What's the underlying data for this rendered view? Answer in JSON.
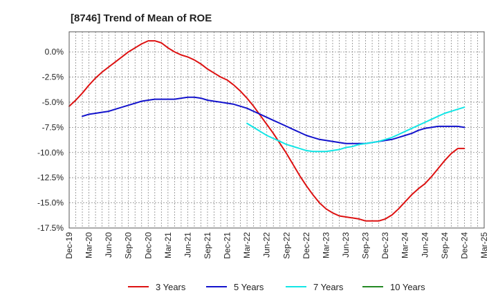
{
  "chart_data": {
    "type": "line",
    "title": "[8746]  Trend of Mean of ROE",
    "xlabel": "",
    "ylabel": "",
    "grid": true,
    "legend_position": "bottom",
    "x_ticks": [
      "Dec-19",
      "Mar-20",
      "Jun-20",
      "Sep-20",
      "Dec-20",
      "Mar-21",
      "Jun-21",
      "Sep-21",
      "Dec-21",
      "Mar-22",
      "Jun-22",
      "Sep-22",
      "Dec-22",
      "Mar-23",
      "Jun-23",
      "Sep-23",
      "Dec-23",
      "Mar-24",
      "Jun-24",
      "Sep-24",
      "Dec-24",
      "Mar-25"
    ],
    "y_ticks": [
      0.0,
      -2.5,
      -5.0,
      -7.5,
      -10.0,
      -12.5,
      -15.0,
      -17.5
    ],
    "y_tick_labels": [
      "0.0%",
      "-2.5%",
      "-5.0%",
      "-7.5%",
      "-10.0%",
      "-12.5%",
      "-15.0%",
      "-17.5%"
    ],
    "ylim": [
      -17.5,
      2.0
    ],
    "series": [
      {
        "name": "3 Years",
        "color": "#dd1111",
        "x": [
          "Dec-19",
          "Jan-20",
          "Feb-20",
          "Mar-20",
          "Apr-20",
          "May-20",
          "Jun-20",
          "Jul-20",
          "Aug-20",
          "Sep-20",
          "Oct-20",
          "Nov-20",
          "Dec-20",
          "Jan-21",
          "Feb-21",
          "Mar-21",
          "Apr-21",
          "May-21",
          "Jun-21",
          "Jul-21",
          "Aug-21",
          "Sep-21",
          "Oct-21",
          "Nov-21",
          "Dec-21",
          "Jan-22",
          "Feb-22",
          "Mar-22",
          "Apr-22",
          "May-22",
          "Jun-22",
          "Jul-22",
          "Aug-22",
          "Sep-22",
          "Oct-22",
          "Nov-22",
          "Dec-22",
          "Jan-23",
          "Feb-23",
          "Mar-23",
          "Apr-23",
          "May-23",
          "Jun-23",
          "Jul-23",
          "Aug-23",
          "Sep-23",
          "Oct-23",
          "Nov-23",
          "Dec-23",
          "Jan-24",
          "Feb-24",
          "Mar-24",
          "Apr-24",
          "May-24",
          "Jun-24",
          "Jul-24",
          "Aug-24",
          "Sep-24",
          "Oct-24",
          "Nov-24",
          "Dec-24"
        ],
        "values": [
          -5.4,
          -4.8,
          -4.1,
          -3.3,
          -2.6,
          -2.0,
          -1.5,
          -1.0,
          -0.5,
          0.0,
          0.4,
          0.8,
          1.1,
          1.1,
          0.9,
          0.4,
          0.0,
          -0.3,
          -0.5,
          -0.8,
          -1.2,
          -1.7,
          -2.1,
          -2.5,
          -2.8,
          -3.3,
          -3.9,
          -4.6,
          -5.4,
          -6.3,
          -7.2,
          -8.1,
          -9.1,
          -10.1,
          -11.2,
          -12.3,
          -13.3,
          -14.2,
          -15.0,
          -15.6,
          -16.0,
          -16.3,
          -16.4,
          -16.5,
          -16.6,
          -16.8,
          -16.8,
          -16.8,
          -16.6,
          -16.2,
          -15.6,
          -14.9,
          -14.2,
          -13.6,
          -13.1,
          -12.4,
          -11.6,
          -10.8,
          -10.1,
          -9.6,
          -9.6
        ]
      },
      {
        "name": "5 Years",
        "color": "#1111cc",
        "x": [
          "Feb-20",
          "Mar-20",
          "Apr-20",
          "May-20",
          "Jun-20",
          "Jul-20",
          "Aug-20",
          "Sep-20",
          "Oct-20",
          "Nov-20",
          "Dec-20",
          "Jan-21",
          "Feb-21",
          "Mar-21",
          "Apr-21",
          "May-21",
          "Jun-21",
          "Jul-21",
          "Aug-21",
          "Sep-21",
          "Oct-21",
          "Nov-21",
          "Dec-21",
          "Jan-22",
          "Feb-22",
          "Mar-22",
          "Apr-22",
          "May-22",
          "Jun-22",
          "Jul-22",
          "Aug-22",
          "Sep-22",
          "Oct-22",
          "Nov-22",
          "Dec-22",
          "Jan-23",
          "Feb-23",
          "Mar-23",
          "Apr-23",
          "May-23",
          "Jun-23",
          "Jul-23",
          "Aug-23",
          "Sep-23",
          "Oct-23",
          "Nov-23",
          "Dec-23",
          "Jan-24",
          "Feb-24",
          "Mar-24",
          "Apr-24",
          "May-24",
          "Jun-24",
          "Jul-24",
          "Aug-24",
          "Sep-24",
          "Oct-24",
          "Nov-24",
          "Dec-24"
        ],
        "values": [
          -6.4,
          -6.2,
          -6.1,
          -6.0,
          -5.9,
          -5.7,
          -5.5,
          -5.3,
          -5.1,
          -4.9,
          -4.8,
          -4.7,
          -4.7,
          -4.7,
          -4.7,
          -4.6,
          -4.5,
          -4.5,
          -4.6,
          -4.8,
          -4.9,
          -5.0,
          -5.1,
          -5.2,
          -5.4,
          -5.6,
          -5.9,
          -6.2,
          -6.5,
          -6.8,
          -7.1,
          -7.4,
          -7.7,
          -8.0,
          -8.3,
          -8.5,
          -8.7,
          -8.8,
          -8.9,
          -9.0,
          -9.1,
          -9.1,
          -9.1,
          -9.1,
          -9.0,
          -8.9,
          -8.8,
          -8.7,
          -8.5,
          -8.3,
          -8.1,
          -7.8,
          -7.6,
          -7.5,
          -7.4,
          -7.4,
          -7.4,
          -7.4,
          -7.5
        ]
      },
      {
        "name": "7 Years",
        "color": "#11e6e6",
        "x": [
          "Mar-22",
          "Apr-22",
          "May-22",
          "Jun-22",
          "Jul-22",
          "Aug-22",
          "Sep-22",
          "Oct-22",
          "Nov-22",
          "Dec-22",
          "Jan-23",
          "Feb-23",
          "Mar-23",
          "Apr-23",
          "May-23",
          "Jun-23",
          "Jul-23",
          "Aug-23",
          "Sep-23",
          "Oct-23",
          "Nov-23",
          "Dec-23",
          "Jan-24",
          "Feb-24",
          "Mar-24",
          "Apr-24",
          "May-24",
          "Jun-24",
          "Jul-24",
          "Aug-24",
          "Sep-24",
          "Oct-24",
          "Nov-24",
          "Dec-24"
        ],
        "values": [
          -7.1,
          -7.5,
          -7.9,
          -8.3,
          -8.6,
          -8.9,
          -9.2,
          -9.4,
          -9.6,
          -9.8,
          -9.9,
          -9.9,
          -9.9,
          -9.8,
          -9.7,
          -9.5,
          -9.4,
          -9.2,
          -9.1,
          -9.0,
          -8.9,
          -8.7,
          -8.5,
          -8.2,
          -7.9,
          -7.6,
          -7.3,
          -7.0,
          -6.7,
          -6.4,
          -6.1,
          -5.9,
          -5.7,
          -5.5
        ]
      },
      {
        "name": "10 Years",
        "color": "#228822",
        "x": [],
        "values": []
      }
    ]
  }
}
